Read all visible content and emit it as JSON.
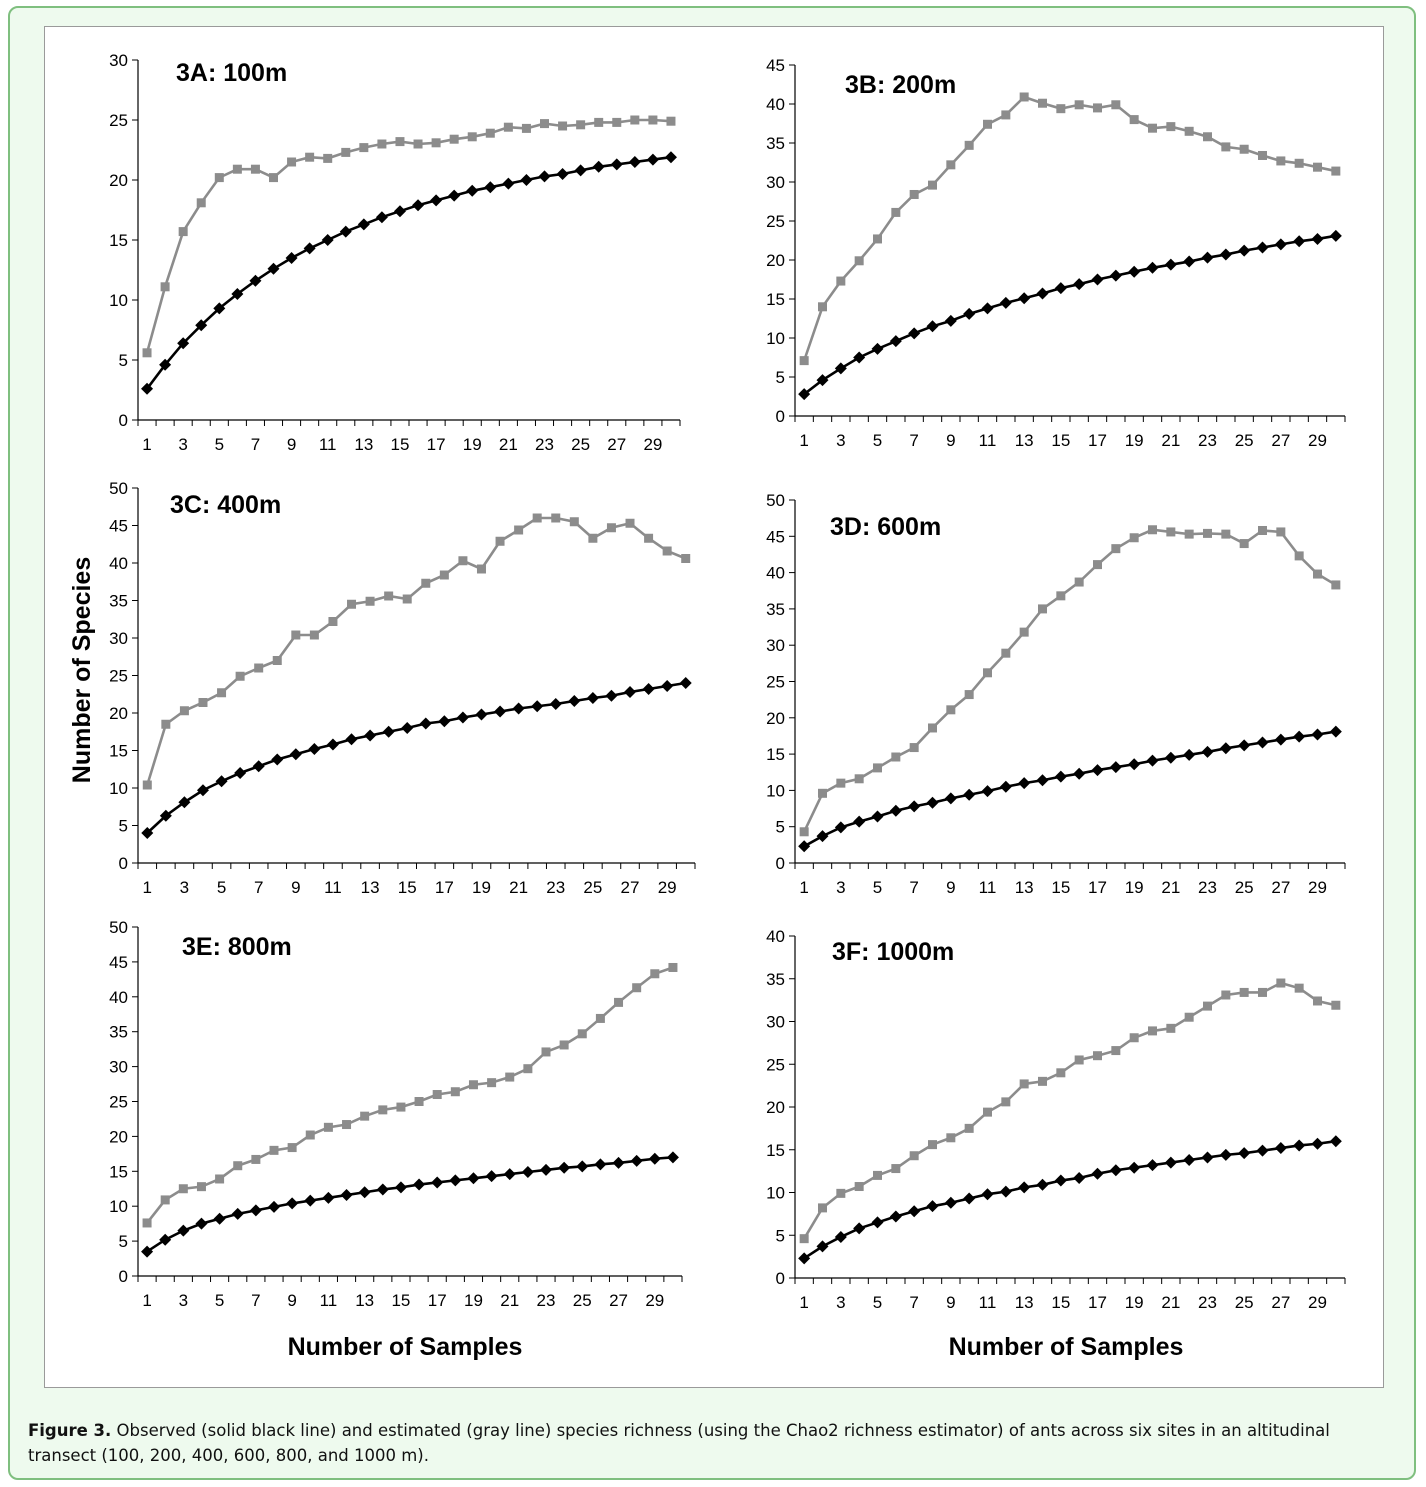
{
  "y_axis_title": "Number of Species",
  "x_axis_title": "Number of Samples",
  "caption": {
    "label": "Figure 3.",
    "text": " Observed (solid black line) and estimated (gray line) species richness (using the Chao2 richness estimator) of ants across six sites in an altitudinal transect (100, 200, 400, 600, 800, and 1000 m)."
  },
  "colors": {
    "observed": "#000000",
    "estimated": "#8c8c8c",
    "border": "#7fbf7f",
    "panel_bg": "#eefaee"
  },
  "chart_data": [
    {
      "type": "line",
      "title": "3A: 100m",
      "x": [
        1,
        2,
        3,
        4,
        5,
        6,
        7,
        8,
        9,
        10,
        11,
        12,
        13,
        14,
        15,
        16,
        17,
        18,
        19,
        20,
        21,
        22,
        23,
        24,
        25,
        26,
        27,
        28,
        29,
        30
      ],
      "xticks": [
        1,
        3,
        5,
        7,
        9,
        11,
        13,
        15,
        17,
        19,
        21,
        23,
        25,
        27,
        29
      ],
      "ylim": [
        0,
        30
      ],
      "yticks": [
        0,
        5,
        10,
        15,
        20,
        25,
        30
      ],
      "series": [
        {
          "role": "estimated",
          "marker": "square",
          "values": [
            5.6,
            11.1,
            15.7,
            18.1,
            20.2,
            20.9,
            20.9,
            20.2,
            21.5,
            21.9,
            21.8,
            22.3,
            22.7,
            23.0,
            23.2,
            23.0,
            23.1,
            23.4,
            23.6,
            23.9,
            24.4,
            24.3,
            24.7,
            24.5,
            24.6,
            24.8,
            24.8,
            25.0,
            25.0,
            24.9
          ]
        },
        {
          "role": "observed",
          "marker": "diamond",
          "values": [
            2.6,
            4.6,
            6.4,
            7.9,
            9.3,
            10.5,
            11.6,
            12.6,
            13.5,
            14.3,
            15.0,
            15.7,
            16.3,
            16.9,
            17.4,
            17.9,
            18.3,
            18.7,
            19.1,
            19.4,
            19.7,
            20.0,
            20.3,
            20.5,
            20.8,
            21.1,
            21.3,
            21.5,
            21.7,
            21.9
          ]
        }
      ]
    },
    {
      "type": "line",
      "title": "3B: 200m",
      "x": [
        1,
        2,
        3,
        4,
        5,
        6,
        7,
        8,
        9,
        10,
        11,
        12,
        13,
        14,
        15,
        16,
        17,
        18,
        19,
        20,
        21,
        22,
        23,
        24,
        25,
        26,
        27,
        28,
        29,
        30
      ],
      "xticks": [
        1,
        3,
        5,
        7,
        9,
        11,
        13,
        15,
        17,
        19,
        21,
        23,
        25,
        27,
        29
      ],
      "ylim": [
        0,
        45
      ],
      "yticks": [
        0,
        5,
        10,
        15,
        20,
        25,
        30,
        35,
        40,
        45
      ],
      "series": [
        {
          "role": "estimated",
          "marker": "square",
          "values": [
            7.1,
            14.0,
            17.3,
            19.9,
            22.7,
            26.1,
            28.4,
            29.6,
            32.2,
            34.7,
            37.4,
            38.6,
            40.9,
            40.1,
            39.4,
            39.9,
            39.5,
            39.9,
            38.0,
            36.9,
            37.1,
            36.5,
            35.8,
            34.5,
            34.2,
            33.4,
            32.7,
            32.4,
            31.9,
            31.4
          ]
        },
        {
          "role": "observed",
          "marker": "diamond",
          "values": [
            2.8,
            4.6,
            6.1,
            7.5,
            8.6,
            9.6,
            10.6,
            11.5,
            12.2,
            13.1,
            13.8,
            14.5,
            15.1,
            15.7,
            16.4,
            16.9,
            17.5,
            18.0,
            18.5,
            19.0,
            19.4,
            19.8,
            20.3,
            20.7,
            21.2,
            21.6,
            22.0,
            22.4,
            22.7,
            23.1
          ]
        }
      ]
    },
    {
      "type": "line",
      "title": "3C: 400m",
      "x": [
        1,
        2,
        3,
        4,
        5,
        6,
        7,
        8,
        9,
        10,
        11,
        12,
        13,
        14,
        15,
        16,
        17,
        18,
        19,
        20,
        21,
        22,
        23,
        24,
        25,
        26,
        27,
        28,
        29,
        30
      ],
      "xticks": [
        1,
        3,
        5,
        7,
        9,
        11,
        13,
        15,
        17,
        19,
        21,
        23,
        25,
        27,
        29
      ],
      "ylim": [
        0,
        50
      ],
      "yticks": [
        0,
        5,
        10,
        15,
        20,
        25,
        30,
        35,
        40,
        45,
        50
      ],
      "series": [
        {
          "role": "estimated",
          "marker": "square",
          "values": [
            10.4,
            18.5,
            20.3,
            21.4,
            22.7,
            24.9,
            26.0,
            27.0,
            30.4,
            30.4,
            32.2,
            34.5,
            34.9,
            35.6,
            35.2,
            37.3,
            38.4,
            40.3,
            39.2,
            42.9,
            44.4,
            46.0,
            46.0,
            45.5,
            43.3,
            44.7,
            45.3,
            43.3,
            41.6,
            40.6
          ]
        },
        {
          "role": "observed",
          "marker": "diamond",
          "values": [
            4.0,
            6.3,
            8.1,
            9.7,
            10.9,
            12.0,
            12.9,
            13.8,
            14.5,
            15.2,
            15.8,
            16.5,
            17.0,
            17.5,
            18.0,
            18.6,
            18.9,
            19.4,
            19.8,
            20.2,
            20.6,
            20.9,
            21.2,
            21.6,
            22.0,
            22.3,
            22.8,
            23.2,
            23.6,
            24.0
          ]
        }
      ]
    },
    {
      "type": "line",
      "title": "3D: 600m",
      "x": [
        1,
        2,
        3,
        4,
        5,
        6,
        7,
        8,
        9,
        10,
        11,
        12,
        13,
        14,
        15,
        16,
        17,
        18,
        19,
        20,
        21,
        22,
        23,
        24,
        25,
        26,
        27,
        28,
        29,
        30
      ],
      "xticks": [
        1,
        3,
        5,
        7,
        9,
        11,
        13,
        15,
        17,
        19,
        21,
        23,
        25,
        27,
        29
      ],
      "ylim": [
        0,
        50
      ],
      "yticks": [
        0,
        5,
        10,
        15,
        20,
        25,
        30,
        35,
        40,
        45,
        50
      ],
      "series": [
        {
          "role": "estimated",
          "marker": "square",
          "values": [
            4.3,
            9.6,
            11.0,
            11.6,
            13.1,
            14.6,
            15.9,
            18.6,
            21.1,
            23.2,
            26.2,
            28.9,
            31.8,
            35.0,
            36.8,
            38.7,
            41.1,
            43.3,
            44.8,
            45.9,
            45.6,
            45.3,
            45.4,
            45.3,
            44.0,
            45.8,
            45.6,
            42.3,
            39.8,
            38.3
          ]
        },
        {
          "role": "observed",
          "marker": "diamond",
          "values": [
            2.3,
            3.7,
            4.9,
            5.7,
            6.4,
            7.2,
            7.8,
            8.3,
            8.9,
            9.4,
            9.9,
            10.5,
            11.0,
            11.4,
            11.9,
            12.3,
            12.8,
            13.2,
            13.6,
            14.1,
            14.5,
            14.9,
            15.3,
            15.8,
            16.2,
            16.6,
            17.0,
            17.4,
            17.7,
            18.1
          ]
        }
      ]
    },
    {
      "type": "line",
      "title": "3E: 800m",
      "x": [
        1,
        2,
        3,
        4,
        5,
        6,
        7,
        8,
        9,
        10,
        11,
        12,
        13,
        14,
        15,
        16,
        17,
        18,
        19,
        20,
        21,
        22,
        23,
        24,
        25,
        26,
        27,
        28,
        29,
        30
      ],
      "xticks": [
        1,
        3,
        5,
        7,
        9,
        11,
        13,
        15,
        17,
        19,
        21,
        23,
        25,
        27,
        29
      ],
      "ylim": [
        0,
        50
      ],
      "yticks": [
        0,
        5,
        10,
        15,
        20,
        25,
        30,
        35,
        40,
        45,
        50
      ],
      "series": [
        {
          "role": "estimated",
          "marker": "square",
          "values": [
            7.6,
            10.9,
            12.5,
            12.8,
            13.9,
            15.8,
            16.7,
            18.0,
            18.4,
            20.2,
            21.3,
            21.7,
            22.9,
            23.8,
            24.2,
            25.0,
            26.0,
            26.4,
            27.4,
            27.7,
            28.5,
            29.7,
            32.1,
            33.1,
            34.7,
            36.9,
            39.2,
            41.3,
            43.3,
            44.2
          ]
        },
        {
          "role": "observed",
          "marker": "diamond",
          "values": [
            3.5,
            5.2,
            6.5,
            7.5,
            8.2,
            8.9,
            9.4,
            9.9,
            10.4,
            10.8,
            11.2,
            11.6,
            12.0,
            12.4,
            12.7,
            13.1,
            13.4,
            13.7,
            14.0,
            14.3,
            14.6,
            14.9,
            15.2,
            15.5,
            15.7,
            16.0,
            16.2,
            16.5,
            16.8,
            17.0
          ]
        }
      ]
    },
    {
      "type": "line",
      "title": "3F: 1000m",
      "x": [
        1,
        2,
        3,
        4,
        5,
        6,
        7,
        8,
        9,
        10,
        11,
        12,
        13,
        14,
        15,
        16,
        17,
        18,
        19,
        20,
        21,
        22,
        23,
        24,
        25,
        26,
        27,
        28,
        29,
        30
      ],
      "xticks": [
        1,
        3,
        5,
        7,
        9,
        11,
        13,
        15,
        17,
        19,
        21,
        23,
        25,
        27,
        29
      ],
      "ylim": [
        0,
        40
      ],
      "yticks": [
        0,
        5,
        10,
        15,
        20,
        25,
        30,
        35,
        40
      ],
      "series": [
        {
          "role": "estimated",
          "marker": "square",
          "values": [
            4.6,
            8.2,
            9.9,
            10.7,
            12.0,
            12.8,
            14.3,
            15.6,
            16.4,
            17.5,
            19.4,
            20.6,
            22.7,
            23.0,
            24.0,
            25.5,
            26.0,
            26.6,
            28.1,
            28.9,
            29.2,
            30.5,
            31.8,
            33.1,
            33.4,
            33.4,
            34.5,
            33.9,
            32.4,
            31.9
          ]
        },
        {
          "role": "observed",
          "marker": "diamond",
          "values": [
            2.3,
            3.7,
            4.8,
            5.8,
            6.5,
            7.2,
            7.8,
            8.4,
            8.8,
            9.3,
            9.8,
            10.1,
            10.6,
            10.9,
            11.4,
            11.7,
            12.2,
            12.6,
            12.9,
            13.2,
            13.5,
            13.8,
            14.1,
            14.4,
            14.6,
            14.9,
            15.2,
            15.5,
            15.7,
            16.0
          ]
        }
      ]
    }
  ]
}
